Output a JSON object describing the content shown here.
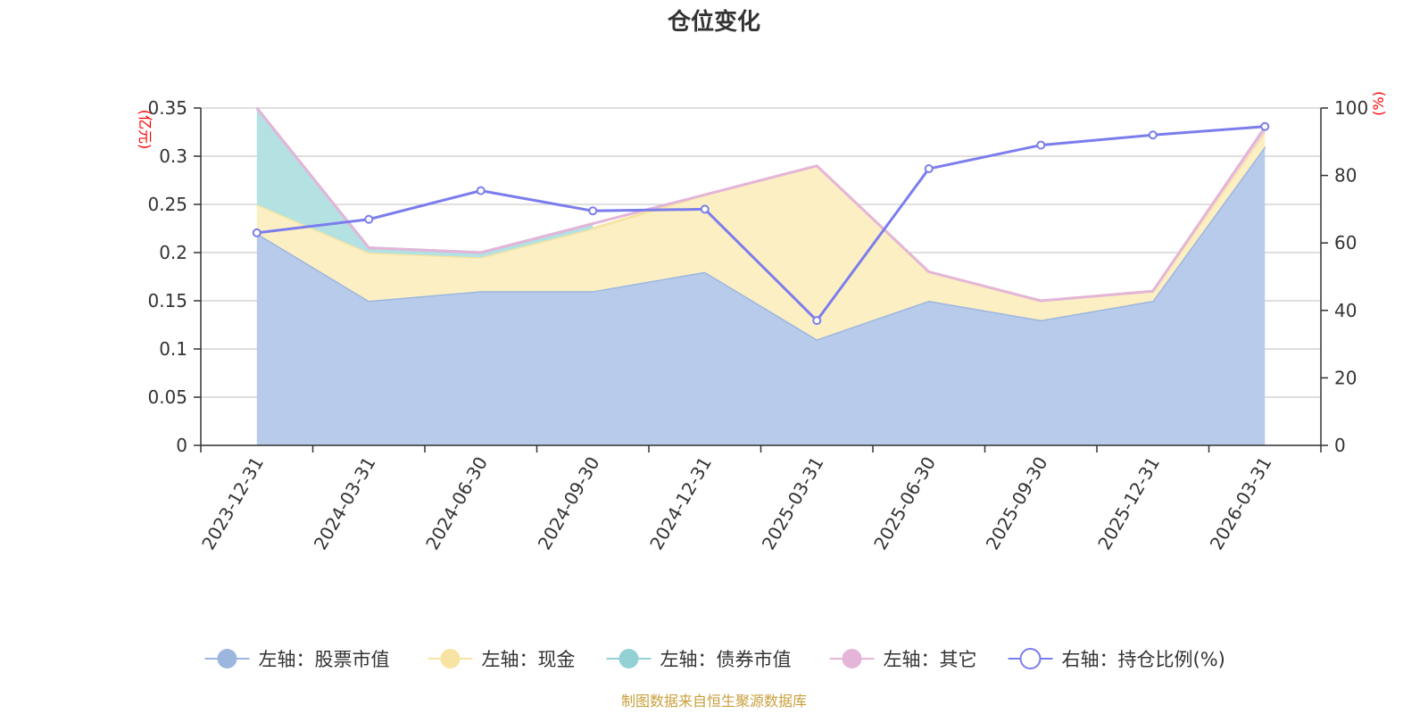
{
  "chart_data": {
    "type": "area",
    "title": "仓位变化",
    "source": "制图数据来自恒生聚源数据库",
    "y_left_unit": "(亿元)",
    "y_right_unit": "(%)",
    "ylim_left": [
      0,
      0.35
    ],
    "ylim_right": [
      0,
      100
    ],
    "y_left_ticks": [
      "0",
      "0.05",
      "0.1",
      "0.15",
      "0.2",
      "0.25",
      "0.3",
      "0.35"
    ],
    "y_right_ticks": [
      "0",
      "20",
      "40",
      "60",
      "80",
      "100"
    ],
    "categories": [
      "2023-12-31",
      "2024-03-31",
      "2024-06-30",
      "2024-09-30",
      "2024-12-31",
      "2025-03-31",
      "2025-06-30",
      "2025-09-30",
      "2025-12-31",
      "2026-03-31"
    ],
    "series": [
      {
        "name": "左轴：股票市值",
        "axis": "left",
        "kind": "area",
        "color": "#9cb6e0",
        "fill": "#b8cbea",
        "values": [
          0.22,
          0.15,
          0.16,
          0.16,
          0.18,
          0.11,
          0.15,
          0.13,
          0.15,
          0.31
        ]
      },
      {
        "name": "左轴：现金",
        "axis": "left",
        "kind": "area",
        "color": "#f7e4a2",
        "fill": "#fbefc3",
        "values": [
          0.03,
          0.05,
          0.035,
          0.065,
          0.08,
          0.18,
          0.03,
          0.02,
          0.01,
          0.015
        ]
      },
      {
        "name": "左轴：债券市值",
        "axis": "left",
        "kind": "area",
        "color": "#93d1d4",
        "fill": "#b4e1e2",
        "values": [
          0.1,
          0.005,
          0.005,
          0.005,
          null,
          null,
          null,
          null,
          null,
          null
        ]
      },
      {
        "name": "左轴：其它",
        "axis": "left",
        "kind": "area",
        "color": "#e4b5d8",
        "fill": "#f0d0e6",
        "values": [
          0.0,
          0.0,
          0.0,
          0.0,
          0.0,
          0.0,
          0.0,
          0.0,
          0.0,
          0.005
        ]
      },
      {
        "name": "右轴：持仓比例(%)",
        "axis": "right",
        "kind": "line",
        "color": "#7b7ded",
        "values": [
          63,
          67,
          75.5,
          69.5,
          70,
          37,
          82,
          89,
          92,
          94.5
        ]
      }
    ]
  }
}
